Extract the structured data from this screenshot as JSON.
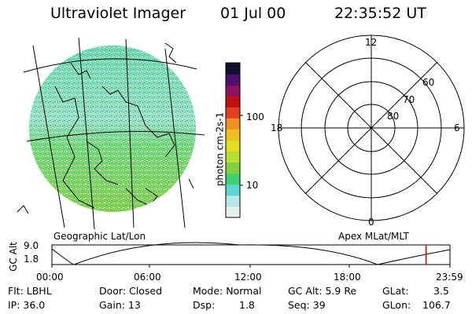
{
  "header": {
    "instrument": "Ultraviolet Imager",
    "date": "01 Jul 00",
    "time": "22:35:52 UT"
  },
  "geo_panel": {
    "label": "Geographic Lat/Lon"
  },
  "colorbar": {
    "unit_label": "photon cm-2s-1",
    "ticks": [
      "100",
      "10"
    ],
    "colors": [
      "#e8f0f0",
      "#b8e8ec",
      "#5cd8d0",
      "#40d070",
      "#80d040",
      "#b8e030",
      "#e0e020",
      "#f0c020",
      "#f09020",
      "#e04020",
      "#c01010",
      "#901060",
      "#501070",
      "#101030"
    ]
  },
  "polar_panel": {
    "label": "Apex MLat/MLT",
    "mlt_labels": {
      "top": "12",
      "left": "18",
      "right": "6",
      "bottom": "0"
    },
    "lat_labels": [
      "60",
      "70",
      "80"
    ]
  },
  "altitude_plot": {
    "ylabel": "GC Alt",
    "yticks": [
      "9.0",
      "1.8"
    ],
    "xticks": [
      "00:00",
      "06:00",
      "12:00",
      "18:00",
      "23:59"
    ],
    "current_time_fraction": 0.94
  },
  "status": {
    "flt": "Flt: LBHL",
    "ip": "IP: 36.0",
    "door": "Door: Closed",
    "gain": "Gain: 13",
    "mode": "Mode: Normal",
    "dsp_label": "Dsp:",
    "dsp_value": "1.8",
    "gc_alt": "GC Alt: 5.9 Re",
    "seq": "Seq: 39",
    "glat_label": "GLat:",
    "glat_value": "3.5",
    "glon_label": "GLon:",
    "glon_value": "106.7"
  }
}
